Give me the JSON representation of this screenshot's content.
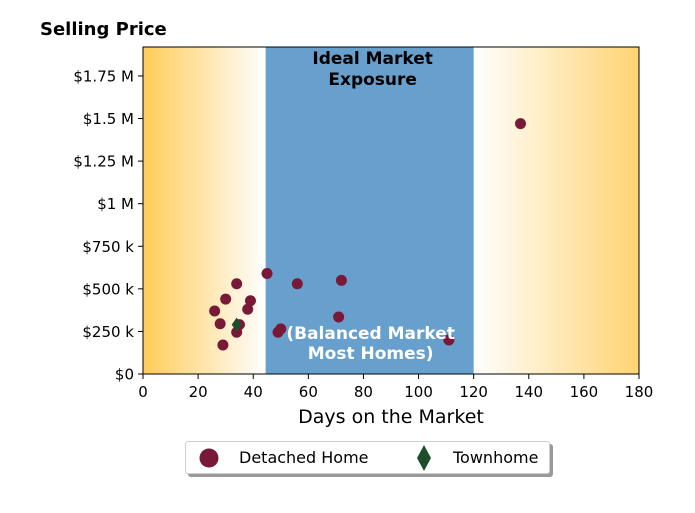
{
  "chart_data": {
    "type": "scatter",
    "title": "Selling Price",
    "xlabel": "Days on the Market",
    "ylabel": "",
    "xlim": [
      0,
      180
    ],
    "ylim": [
      0,
      1920000
    ],
    "x_ticks": [
      0,
      20,
      40,
      60,
      80,
      100,
      120,
      140,
      160,
      180
    ],
    "y_ticks": [
      0,
      250000,
      500000,
      750000,
      1000000,
      1250000,
      1500000,
      1750000
    ],
    "y_tick_labels": [
      "$0",
      "$250 k",
      "$500 k",
      "$750 k",
      "$1 M",
      "$1.25 M",
      "$1.5 M",
      "$1.75 M"
    ],
    "grid": false,
    "legend_placement": "bottom-center",
    "bands": {
      "ideal": {
        "x_from": 44.5,
        "x_to": 120,
        "color": "#679fcd"
      },
      "gradient_color": "#ffc94f"
    },
    "annotations": {
      "top_line1": "Ideal Market",
      "top_line2": "Exposure",
      "bottom_line1": "(Balanced Market",
      "bottom_line2": "Most Homes)"
    },
    "series": [
      {
        "name": "Detached Home",
        "color": "#781a37",
        "marker": "circle",
        "points": [
          [
            26,
            370000
          ],
          [
            28,
            295000
          ],
          [
            29,
            170000
          ],
          [
            30,
            440000
          ],
          [
            34,
            530000
          ],
          [
            34,
            245000
          ],
          [
            35,
            290000
          ],
          [
            38,
            380000
          ],
          [
            39,
            430000
          ],
          [
            45,
            590000
          ],
          [
            49,
            245000
          ],
          [
            50,
            265000
          ],
          [
            56,
            530000
          ],
          [
            71,
            335000
          ],
          [
            72,
            550000
          ],
          [
            111,
            200000
          ],
          [
            137,
            1470000
          ]
        ]
      },
      {
        "name": "Townhome",
        "color": "#1e4d2b",
        "marker": "diamond",
        "points": [
          [
            34,
            290000
          ]
        ]
      }
    ]
  }
}
